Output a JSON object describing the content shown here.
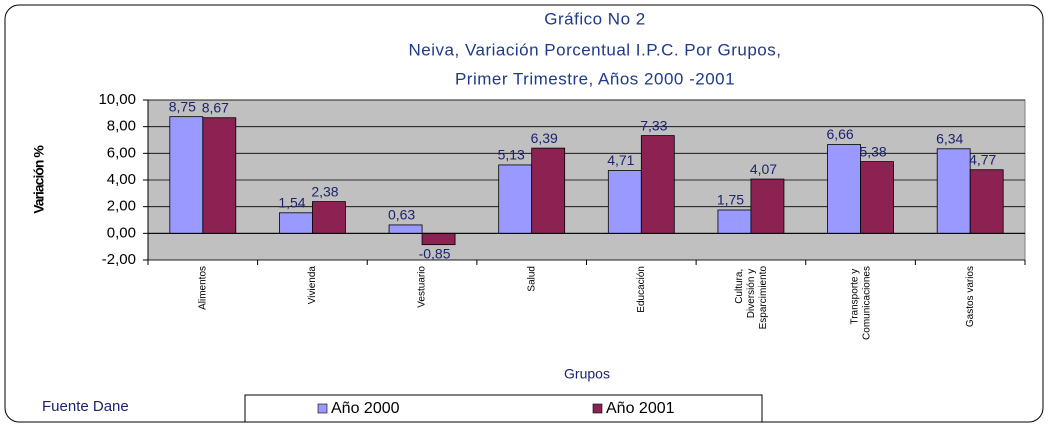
{
  "chart_data": {
    "type": "bar",
    "title": "Gráfico No 2",
    "subtitle": [
      "Neiva, Variación Porcentual I.P.C. Por Grupos,",
      "Primer Trimestre, Años 2000 -2001"
    ],
    "xlabel": "Grupos",
    "ylabel": "Variación %",
    "source": "Fuente Dane",
    "categories": [
      "Alimentos",
      "Vivienda",
      "Vestuario",
      "Salud",
      "Educación",
      "Cultura, Diversión y Esparcimiento",
      "Transporte y Comunicaciones",
      "Gastos varios"
    ],
    "series": [
      {
        "name": "Año 2000",
        "color": "#9999ff",
        "values": [
          8.75,
          1.54,
          0.63,
          5.13,
          4.71,
          1.75,
          6.66,
          6.34
        ],
        "value_labels": [
          "8,75",
          "1,54",
          "0,63",
          "5,13",
          "4,71",
          "1,75",
          "6,66",
          "6,34"
        ]
      },
      {
        "name": "Año 2001",
        "color": "#8b2252",
        "values": [
          8.67,
          2.38,
          -0.85,
          6.39,
          7.33,
          4.07,
          5.38,
          4.77
        ],
        "value_labels": [
          "8,67",
          "2,38",
          "-0,85",
          "6,39",
          "7,33",
          "4,07",
          "5,38",
          "4,77"
        ]
      }
    ],
    "ylim": [
      -2,
      10
    ],
    "yticks": [
      {
        "value": -2,
        "label": "-2,00"
      },
      {
        "value": 0,
        "label": "0,00"
      },
      {
        "value": 2,
        "label": "2,00"
      },
      {
        "value": 4,
        "label": "4,00"
      },
      {
        "value": 6,
        "label": "6,00"
      },
      {
        "value": 8,
        "label": "8,00"
      },
      {
        "value": 10,
        "label": "10,00"
      }
    ],
    "grid": true
  }
}
